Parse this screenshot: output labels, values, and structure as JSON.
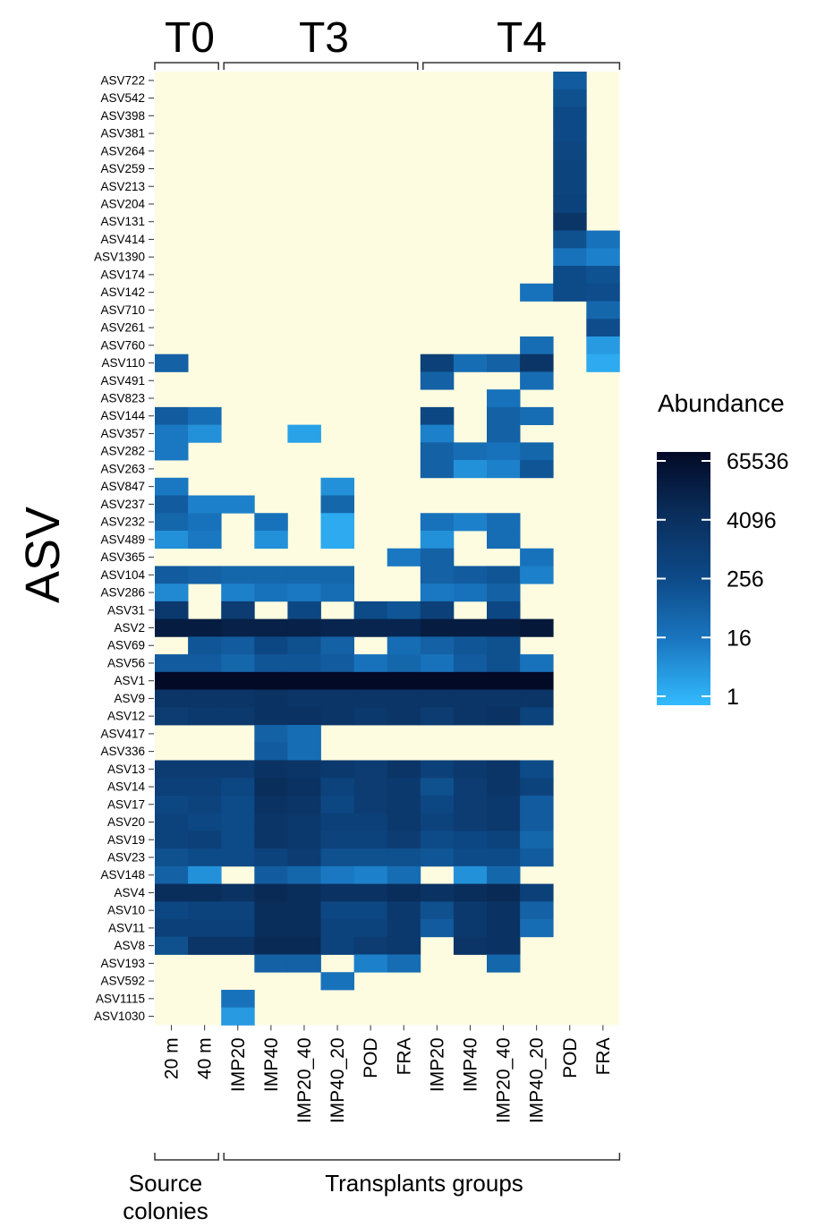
{
  "chart_data": {
    "type": "heatmap",
    "ylabel": "ASV",
    "time_groups": [
      "T0",
      "T3",
      "T4"
    ],
    "bottom_groups": [
      "Source colonies",
      "Transplants groups"
    ],
    "columns": [
      "20 m",
      "40 m",
      "IMP20",
      "IMP40",
      "IMP20_40",
      "IMP40_20",
      "POD",
      "FRA",
      "IMP20",
      "IMP40",
      "IMP20_40",
      "IMP40_20",
      "POD",
      "FRA"
    ],
    "rows": [
      "ASV722",
      "ASV542",
      "ASV398",
      "ASV381",
      "ASV264",
      "ASV259",
      "ASV213",
      "ASV204",
      "ASV131",
      "ASV414",
      "ASV1390",
      "ASV174",
      "ASV142",
      "ASV710",
      "ASV261",
      "ASV760",
      "ASV110",
      "ASV491",
      "ASV823",
      "ASV144",
      "ASV357",
      "ASV282",
      "ASV263",
      "ASV847",
      "ASV237",
      "ASV232",
      "ASV489",
      "ASV365",
      "ASV104",
      "ASV286",
      "ASV31",
      "ASV2",
      "ASV69",
      "ASV56",
      "ASV1",
      "ASV9",
      "ASV12",
      "ASV417",
      "ASV336",
      "ASV13",
      "ASV14",
      "ASV17",
      "ASV20",
      "ASV19",
      "ASV23",
      "ASV148",
      "ASV4",
      "ASV10",
      "ASV11",
      "ASV8",
      "ASV193",
      "ASV592",
      "ASV1115",
      "ASV1030"
    ],
    "scale": "log2",
    "legend": {
      "title": "Abundance",
      "ticks": [
        "65536",
        "4096",
        "256",
        "16",
        "1"
      ],
      "min": 1,
      "max": 65536,
      "placement": "right"
    },
    "colors": {
      "background": "#fdfce0",
      "low": "#33bbff",
      "high": "#020a26"
    },
    "values_log2": [
      [
        0,
        0,
        0,
        0,
        0,
        0,
        0,
        0,
        0,
        0,
        0,
        0,
        6.5,
        0
      ],
      [
        0,
        0,
        0,
        0,
        0,
        0,
        0,
        0,
        0,
        0,
        0,
        0,
        7.5,
        0
      ],
      [
        0,
        0,
        0,
        0,
        0,
        0,
        0,
        0,
        0,
        0,
        0,
        0,
        8.2,
        0
      ],
      [
        0,
        0,
        0,
        0,
        0,
        0,
        0,
        0,
        0,
        0,
        0,
        0,
        8.2,
        0
      ],
      [
        0,
        0,
        0,
        0,
        0,
        0,
        0,
        0,
        0,
        0,
        0,
        0,
        8.6,
        0
      ],
      [
        0,
        0,
        0,
        0,
        0,
        0,
        0,
        0,
        0,
        0,
        0,
        0,
        8.9,
        0
      ],
      [
        0,
        0,
        0,
        0,
        0,
        0,
        0,
        0,
        0,
        0,
        0,
        0,
        8.9,
        0
      ],
      [
        0,
        0,
        0,
        0,
        0,
        0,
        0,
        0,
        0,
        0,
        0,
        0,
        9.2,
        0
      ],
      [
        0,
        0,
        0,
        0,
        0,
        0,
        0,
        0,
        0,
        0,
        0,
        0,
        11,
        0
      ],
      [
        0,
        0,
        0,
        0,
        0,
        0,
        0,
        0,
        0,
        0,
        0,
        0,
        7.5,
        4.5
      ],
      [
        0,
        0,
        0,
        0,
        0,
        0,
        0,
        0,
        0,
        0,
        0,
        0,
        4.5,
        3.5
      ],
      [
        0,
        0,
        0,
        0,
        0,
        0,
        0,
        0,
        0,
        0,
        0,
        0,
        8,
        7.3
      ],
      [
        0,
        0,
        0,
        0,
        0,
        0,
        0,
        0,
        0,
        0,
        0,
        4.5,
        8,
        7.8
      ],
      [
        0,
        0,
        0,
        0,
        0,
        0,
        0,
        0,
        0,
        0,
        0,
        0,
        0,
        5.5
      ],
      [
        0,
        0,
        0,
        0,
        0,
        0,
        0,
        0,
        0,
        0,
        0,
        0,
        0,
        7.8
      ],
      [
        0,
        0,
        0,
        0,
        0,
        0,
        0,
        0,
        0,
        0,
        0,
        5,
        0,
        2
      ],
      [
        6,
        0,
        0,
        0,
        0,
        0,
        0,
        0,
        9.5,
        5,
        6,
        11,
        0,
        1
      ],
      [
        0,
        0,
        0,
        0,
        0,
        0,
        0,
        0,
        6,
        0,
        0,
        5,
        0,
        0
      ],
      [
        0,
        0,
        0,
        0,
        0,
        0,
        0,
        0,
        0,
        0,
        4.5,
        0,
        0,
        0
      ],
      [
        6.5,
        5,
        0,
        0,
        0,
        0,
        0,
        0,
        8.5,
        0,
        6,
        5,
        0,
        0
      ],
      [
        4,
        2.5,
        0,
        0,
        1.5,
        0,
        0,
        0,
        3.5,
        0,
        6,
        0,
        0,
        0
      ],
      [
        4,
        0,
        0,
        0,
        0,
        0,
        0,
        0,
        6,
        5,
        4.5,
        5.5,
        0,
        0
      ],
      [
        0,
        0,
        0,
        0,
        0,
        0,
        0,
        0,
        6,
        2.5,
        3.5,
        7,
        0,
        0
      ],
      [
        4,
        0,
        0,
        0,
        0,
        2.5,
        0,
        0,
        0,
        0,
        0,
        0,
        0,
        0
      ],
      [
        6.5,
        3.5,
        3.5,
        0,
        0,
        5.5,
        0,
        0,
        0,
        0,
        0,
        0,
        0,
        0
      ],
      [
        5.5,
        4.5,
        0,
        4.5,
        0,
        1,
        0,
        0,
        4.5,
        3.5,
        5,
        0,
        0,
        0
      ],
      [
        2.5,
        4,
        0,
        2.5,
        0,
        1,
        0,
        0,
        2.5,
        0,
        5,
        0,
        0,
        0
      ],
      [
        0,
        0,
        0,
        0,
        0,
        0,
        0,
        4,
        6,
        0,
        0,
        4.5,
        0,
        0
      ],
      [
        6.5,
        6,
        5.5,
        5.5,
        5.5,
        5.5,
        0,
        0,
        6,
        6.5,
        7,
        3.5,
        0,
        0
      ],
      [
        3,
        0,
        3.5,
        4.5,
        4,
        5,
        0,
        0,
        4,
        4.5,
        6,
        0,
        0,
        0
      ],
      [
        10.5,
        0,
        10,
        0,
        8.5,
        0,
        8,
        7,
        9.5,
        0,
        8.5,
        0,
        0,
        0
      ],
      [
        14,
        14,
        13.5,
        13.5,
        13.5,
        13,
        13,
        13,
        14,
        14,
        14,
        14.5,
        0,
        0
      ],
      [
        0,
        7,
        6.5,
        8.5,
        7.5,
        6,
        0,
        5,
        6,
        7,
        7.5,
        0,
        0,
        0
      ],
      [
        6.5,
        6.5,
        5.5,
        7,
        7,
        6.5,
        4.5,
        5.5,
        4.5,
        6.5,
        7.5,
        4.5,
        0,
        0
      ],
      [
        16,
        16,
        16,
        16,
        16,
        16,
        16,
        16,
        16,
        16,
        16,
        16,
        0,
        0
      ],
      [
        11,
        11,
        11,
        11.5,
        11,
        11,
        11,
        11,
        11,
        11,
        11,
        11,
        0,
        0
      ],
      [
        10,
        10.5,
        10.5,
        11.5,
        11.5,
        11,
        10.5,
        11,
        10,
        11,
        11.5,
        9,
        0,
        0
      ],
      [
        0,
        0,
        0,
        6,
        5,
        0,
        0,
        0,
        0,
        0,
        0,
        0,
        0,
        0
      ],
      [
        0,
        0,
        0,
        6.5,
        5,
        0,
        0,
        0,
        0,
        0,
        0,
        0,
        0,
        0
      ],
      [
        10,
        10,
        10,
        11.5,
        11,
        10.5,
        10,
        11,
        9.5,
        10.5,
        11,
        8,
        0,
        0
      ],
      [
        9.5,
        9.5,
        8.5,
        12,
        11.5,
        9,
        10,
        10.5,
        7.5,
        10,
        11,
        9,
        0,
        0
      ],
      [
        8.5,
        9,
        8,
        11.5,
        11,
        8.5,
        10,
        10.5,
        8.5,
        10,
        10.5,
        6.5,
        0,
        0
      ],
      [
        9,
        8.5,
        8,
        11,
        10.5,
        9.5,
        9.5,
        10.5,
        9,
        10,
        10.5,
        6.5,
        0,
        0
      ],
      [
        9,
        9.5,
        8,
        11,
        10.5,
        9,
        9,
        10,
        8,
        8.5,
        9,
        5.5,
        0,
        0
      ],
      [
        7.5,
        8,
        8,
        9,
        10,
        7.5,
        7.5,
        7.5,
        7,
        8,
        8,
        6.5,
        0,
        0
      ],
      [
        6,
        2.5,
        0,
        6.5,
        5.5,
        4,
        3.5,
        5,
        0,
        2.5,
        5.5,
        0,
        0,
        0
      ],
      [
        12,
        12,
        11.5,
        12.5,
        12,
        11.5,
        11.5,
        12,
        11.5,
        12,
        12.5,
        9.5,
        0,
        0
      ],
      [
        8.5,
        9,
        9,
        12,
        12,
        8.5,
        8.5,
        10.5,
        7.5,
        10.5,
        11.5,
        6,
        0,
        0
      ],
      [
        9.5,
        9.5,
        9.5,
        12,
        12,
        9,
        9,
        10.5,
        6.5,
        10.5,
        11.5,
        5,
        0,
        0
      ],
      [
        7.5,
        11,
        11,
        12.5,
        12.5,
        9,
        10,
        10.5,
        0,
        11,
        11.5,
        0,
        0,
        0
      ],
      [
        0,
        0,
        0,
        6,
        6,
        0,
        3.5,
        5,
        0,
        0,
        5.5,
        0,
        0,
        0
      ],
      [
        0,
        0,
        0,
        0,
        0,
        4.5,
        0,
        0,
        0,
        0,
        0,
        0,
        0,
        0
      ],
      [
        0,
        0,
        4.5,
        0,
        0,
        0,
        0,
        0,
        0,
        0,
        0,
        0,
        0,
        0
      ],
      [
        0,
        0,
        2,
        0,
        0,
        0,
        0,
        0,
        0,
        0,
        0,
        0,
        0,
        0
      ]
    ]
  }
}
